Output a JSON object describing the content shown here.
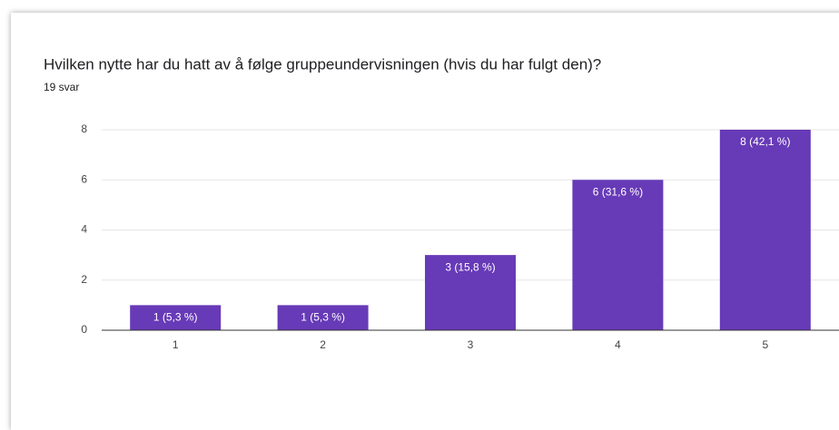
{
  "chart_data": {
    "type": "bar",
    "title": "Hvilken nytte har du hatt av å følge gruppeundervisningen (hvis du har fulgt den)?",
    "subtitle": "19 svar",
    "categories": [
      "1",
      "2",
      "3",
      "4",
      "5"
    ],
    "values": [
      1,
      1,
      3,
      6,
      8
    ],
    "value_labels": [
      "1 (5,3 %)",
      "1 (5,3 %)",
      "3 (15,8 %)",
      "6 (31,6 %)",
      "8 (42,1 %)"
    ],
    "color": "#673ab7",
    "ylim": [
      0,
      8
    ],
    "yticks": [
      0,
      2,
      4,
      6,
      8
    ],
    "grid": true
  }
}
